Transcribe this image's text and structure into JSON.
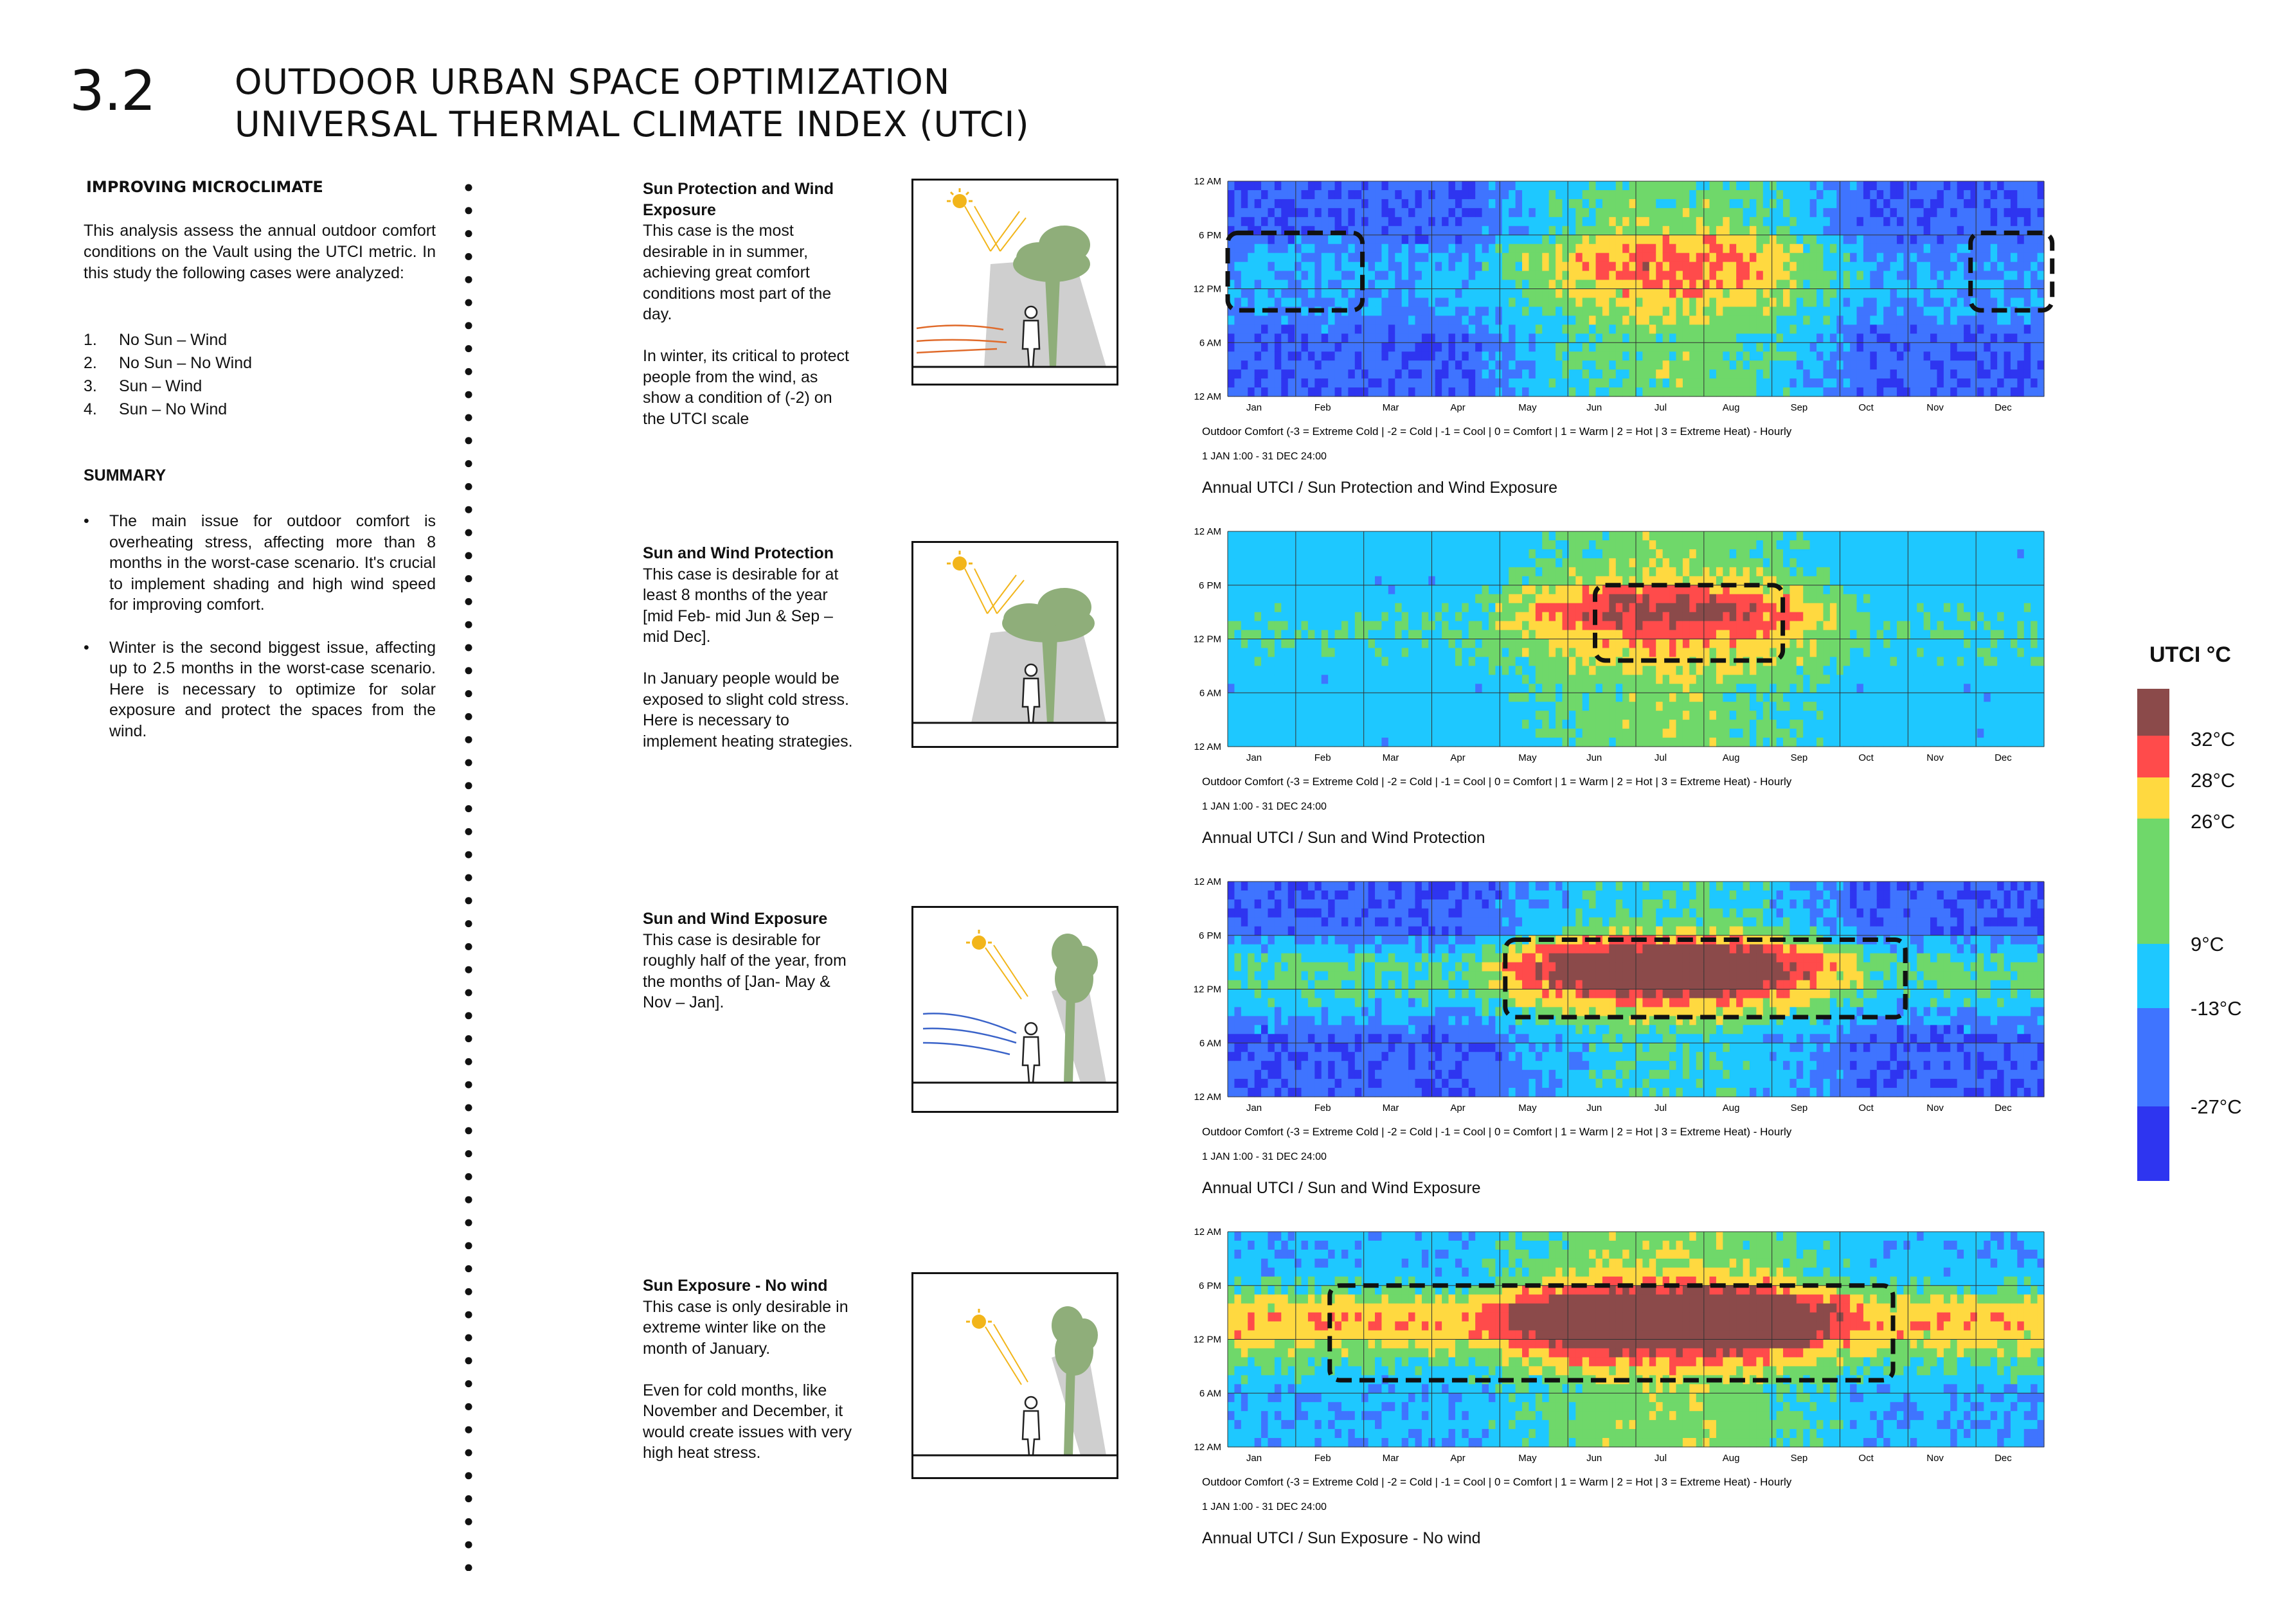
{
  "header": {
    "section_number": "3.2",
    "title_line1": "OUTDOOR URBAN SPACE OPTIMIZATION",
    "title_line2": "UNIVERSAL THERMAL CLIMATE INDEX (UTCI)"
  },
  "left": {
    "improving_heading": "IMPROVING MICROCLIMATE",
    "intro": "This analysis assess the annual outdoor comfort conditions on the Vault using the UTCI metric. In this study the following cases were analyzed:",
    "cases": [
      {
        "num": "1.",
        "label": "No Sun – Wind"
      },
      {
        "num": "2.",
        "label": "No Sun – No Wind"
      },
      {
        "num": "3.",
        "label": "Sun – Wind"
      },
      {
        "num": "4.",
        "label": "Sun – No Wind"
      }
    ],
    "summary_heading": "SUMMARY",
    "summary_bullets": [
      "The main issue for outdoor comfort is overheating stress, affecting more than 8 months in the worst-case scenario. It's crucial to implement shading and high wind speed for improving comfort.",
      "Winter is the second biggest issue, affecting up to 2.5 months in the worst-case scenario. Here is necessary to optimize for solar exposure and protect the spaces from the wind."
    ]
  },
  "case_blocks": [
    {
      "title": "Sun Protection and Wind Exposure",
      "paragraphs": [
        "This case is the most desirable in in summer, achieving great comfort conditions most part of the day.",
        "In winter, its critical to protect people from the wind, as show a condition of (-2) on the UTCI scale"
      ],
      "illustration_icon": "sun-protected-windy-person-icon",
      "caption": "Annual UTCI / Sun Protection and Wind Exposure"
    },
    {
      "title": "Sun and Wind Protection",
      "paragraphs": [
        "This case is desirable for at least 8 months of the year [mid Feb- mid Jun & Sep – mid Dec].",
        "In January people would be exposed to slight cold stress. Here is necessary to implement heating strategies."
      ],
      "illustration_icon": "sun-and-wind-protected-person-icon",
      "caption": "Annual UTCI / Sun and Wind Protection"
    },
    {
      "title": "Sun and Wind Exposure",
      "paragraphs": [
        "This case is desirable for roughly half of the year, from the months of [Jan- May & Nov – Jan]."
      ],
      "illustration_icon": "sun-and-wind-exposed-person-icon",
      "caption": "Annual UTCI / Sun and Wind Exposure"
    },
    {
      "title": "Sun Exposure - No wind",
      "paragraphs": [
        "This case is only desirable in extreme winter like on the month of January.",
        "Even for cold months, like November and December, it  would  create issues with very high heat stress."
      ],
      "illustration_icon": "sun-exposed-no-wind-person-icon",
      "caption": "Annual UTCI / Sun Exposure - No wind"
    }
  ],
  "chart_common": {
    "y_ticks": [
      "12 AM",
      "6 PM",
      "12 PM",
      "6 AM",
      "12 AM"
    ],
    "months": [
      "Jan",
      "Feb",
      "Mar",
      "Apr",
      "May",
      "Jun",
      "Jul",
      "Aug",
      "Sep",
      "Oct",
      "Nov",
      "Dec"
    ],
    "footnote": "Outdoor Comfort (-3 = Extreme Cold | -2 = Cold | -1 = Cool | 0 = Comfort | 1 = Warm | 2 = Hot | 3 = Extreme Heat) - Hourly",
    "period": "1 JAN 1:00 - 31 DEC 24:00"
  },
  "legend": {
    "title": "UTCI °C",
    "labels": [
      "32°C",
      "28°C",
      "26°C",
      "9°C",
      "-13°C",
      "-27°C"
    ],
    "colors": {
      "extreme_heat": "#8b4a4a",
      "hot": "#ff4b4b",
      "warm": "#ffd940",
      "comfort": "#6fd86a",
      "cool": "#1ec8ff",
      "cold": "#3f74ff",
      "extreme_cold": "#2e35f0"
    }
  },
  "chart_data": [
    {
      "type": "heatmap",
      "title": "Annual UTCI / Sun Protection and Wind Exposure",
      "x": "month (Jan–Dec)",
      "y": "hour of day",
      "values_scale": "-3 to 3",
      "summary": {
        "winter_night": -2,
        "winter_day": -1,
        "summer_day": 0,
        "summer_afternoon_peak": 1
      }
    },
    {
      "type": "heatmap",
      "title": "Annual UTCI / Sun and Wind Protection",
      "x": "month (Jan–Dec)",
      "y": "hour of day",
      "values_scale": "-3 to 3",
      "summary": {
        "winter_night": -1,
        "winter_day": -1,
        "summer_day": 0,
        "summer_afternoon_peak": 2
      }
    },
    {
      "type": "heatmap",
      "title": "Annual UTCI / Sun and Wind Exposure",
      "x": "month (Jan–Dec)",
      "y": "hour of day",
      "values_scale": "-3 to 3",
      "summary": {
        "winter_night": -2,
        "winter_day": 0,
        "summer_day": 2,
        "summer_afternoon_peak": 3
      }
    },
    {
      "type": "heatmap",
      "title": "Annual UTCI / Sun Exposure - No wind",
      "x": "month (Jan–Dec)",
      "y": "hour of day",
      "values_scale": "-3 to 3",
      "summary": {
        "winter_night": -1,
        "winter_day": 1,
        "summer_day": 3,
        "summer_afternoon_peak": 3
      }
    }
  ]
}
